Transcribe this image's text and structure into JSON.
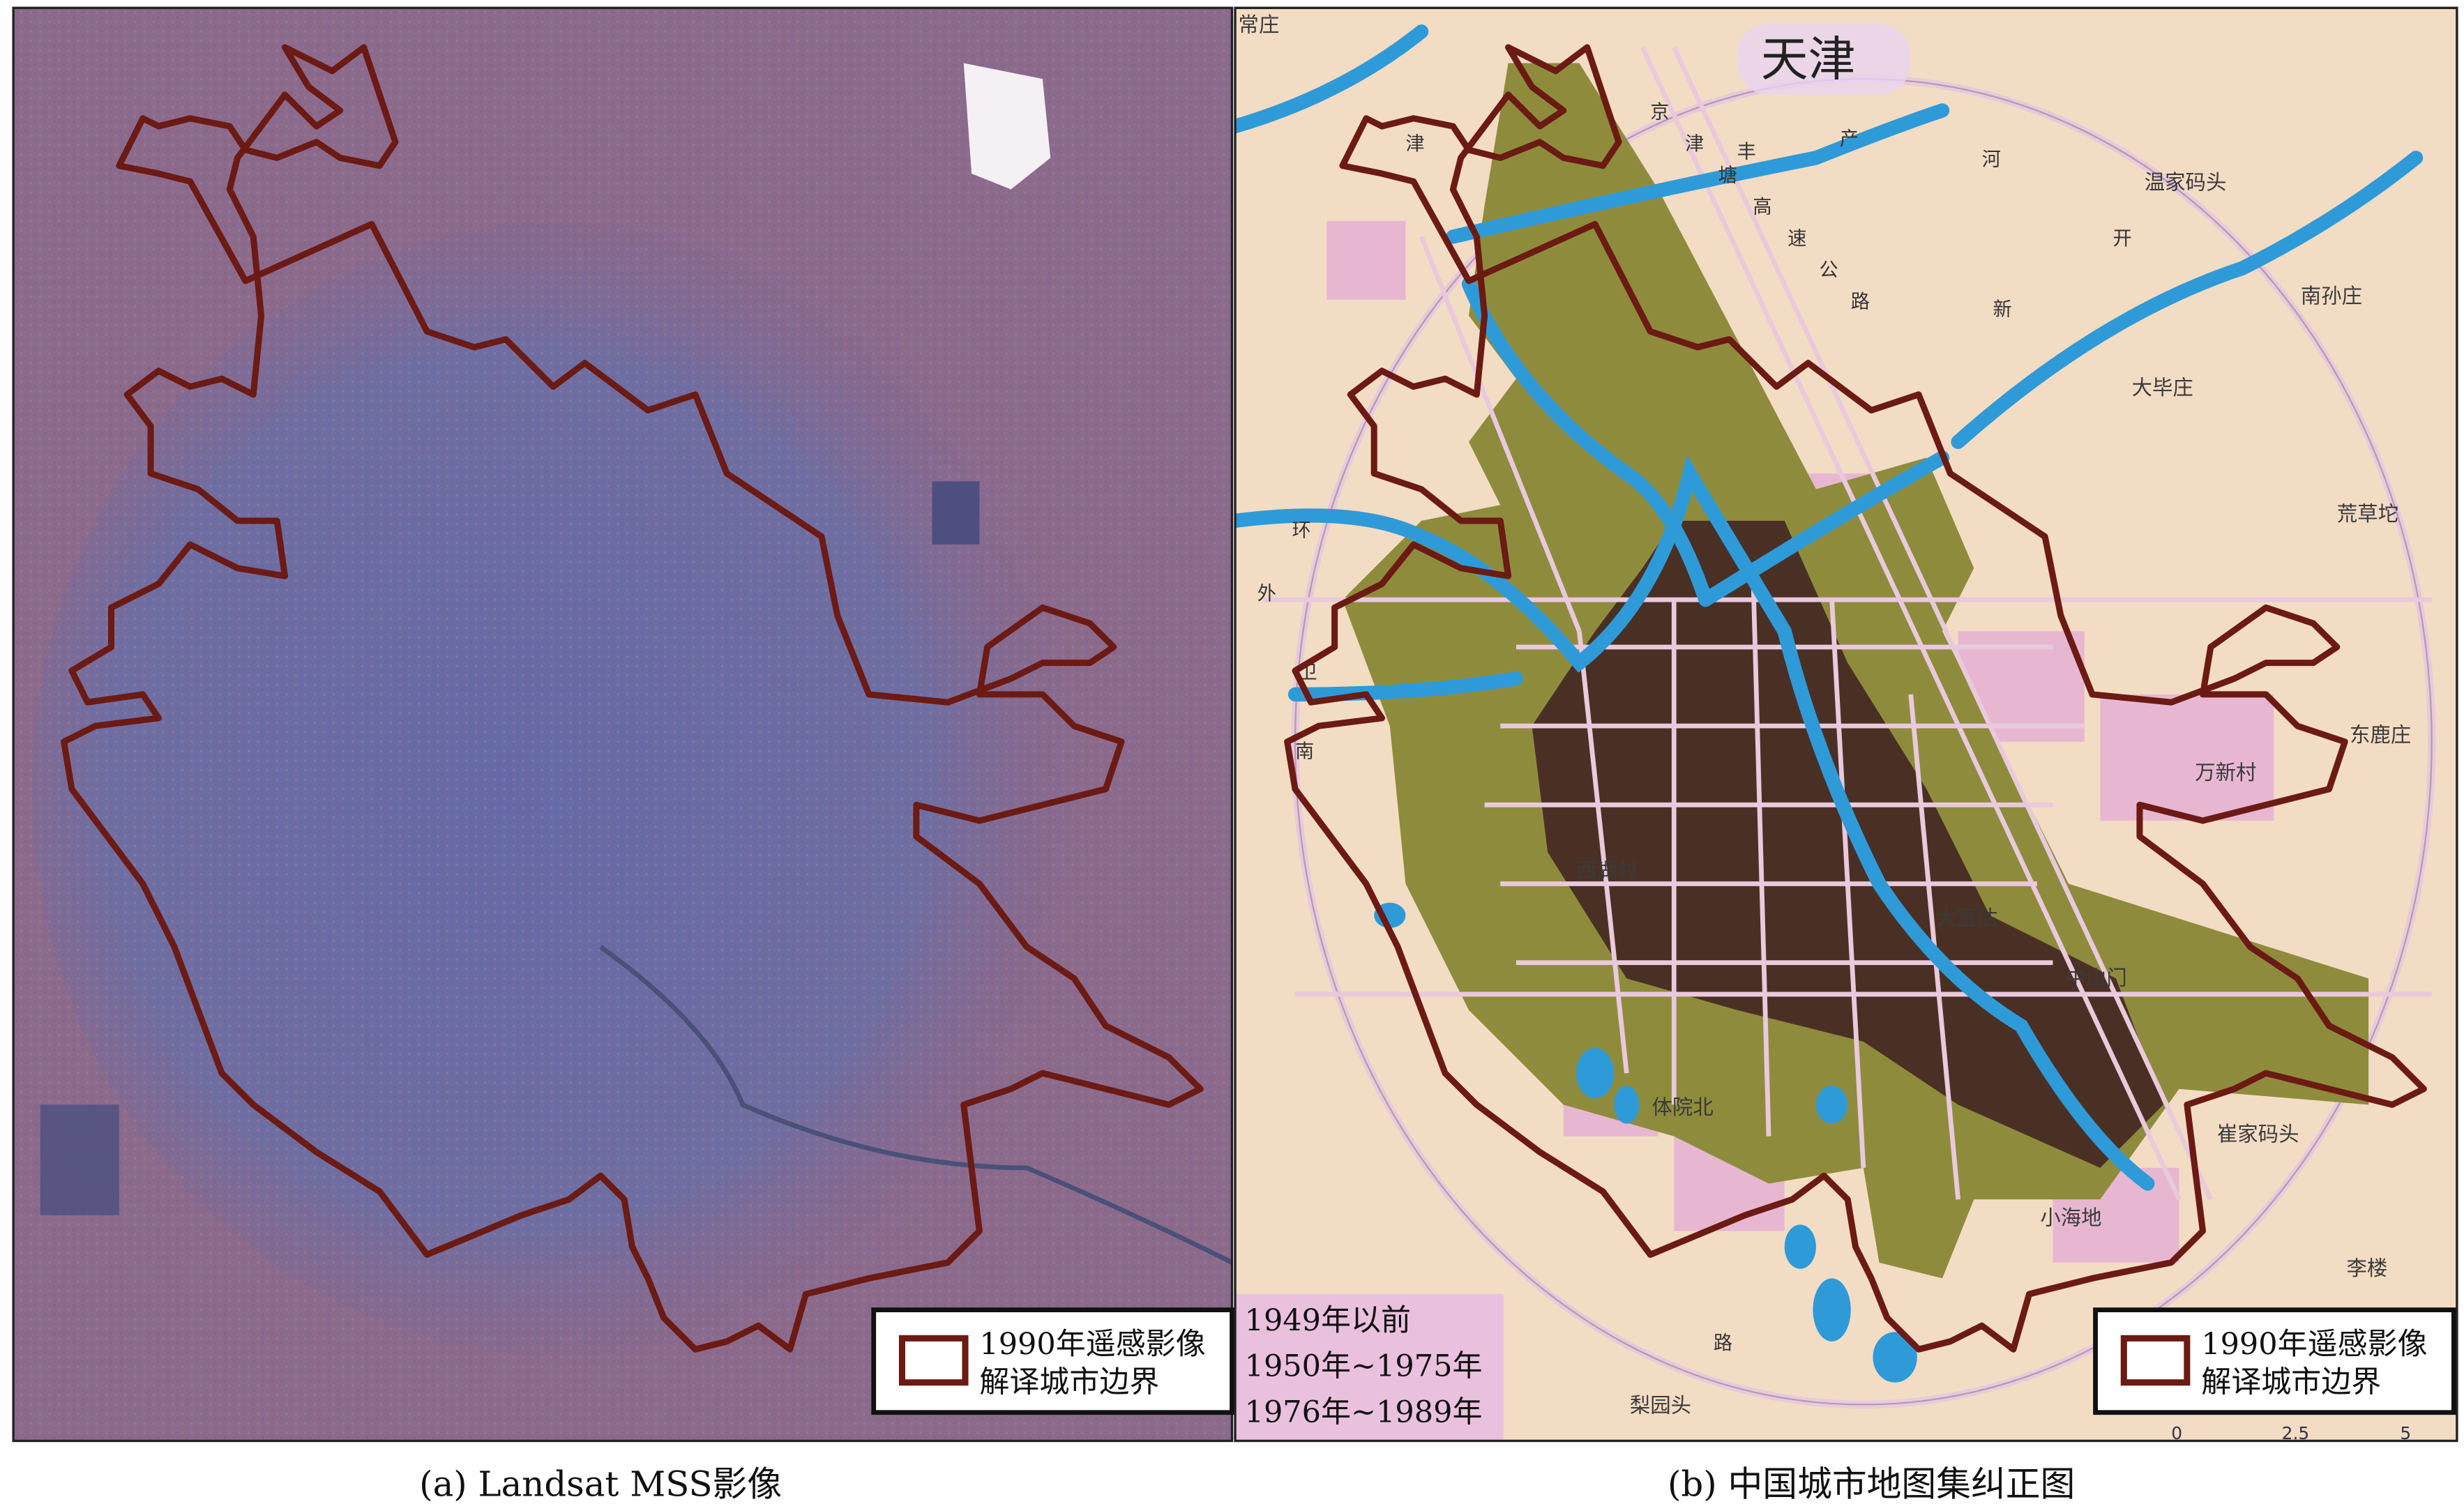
{
  "panels": {
    "a": {
      "caption": "(a) Landsat MSS影像"
    },
    "b": {
      "caption": "(b) 中国城市地图集纠正图"
    }
  },
  "legend": {
    "line1": "1990年遥感影像",
    "line2": "解译城市边界",
    "boundary_color": "#6b1a14"
  },
  "period_legend": {
    "items": [
      "1949年以前",
      "1950年~1975年",
      "1976年~1989年"
    ]
  },
  "map": {
    "title": "天津",
    "labels": [
      "常庄",
      "温家码头",
      "南孙庄",
      "大毕庄",
      "荒草坨",
      "万新村",
      "中山门",
      "小海地",
      "李楼",
      "西湖村",
      "体院北",
      "梨园头",
      "大直沽",
      "东鹿庄",
      "崔家码头"
    ],
    "road_labels": [
      "京",
      "津",
      "塘",
      "高",
      "速",
      "公",
      "路",
      "丰",
      "产",
      "河",
      "新",
      "开",
      "外",
      "环",
      "卫",
      "津",
      "南",
      "路"
    ],
    "scale": [
      "0",
      "2.5",
      "5"
    ]
  },
  "colors": {
    "satellite_base": "#8c6a8c",
    "satellite_urban": "#6c6fa4",
    "map_base": "#f3dcc4",
    "pre_1949": "#4a3024",
    "1950_1975": "#8e8c3c",
    "1976_1989": "#e7b7d2",
    "river": "#2f9ad8"
  }
}
